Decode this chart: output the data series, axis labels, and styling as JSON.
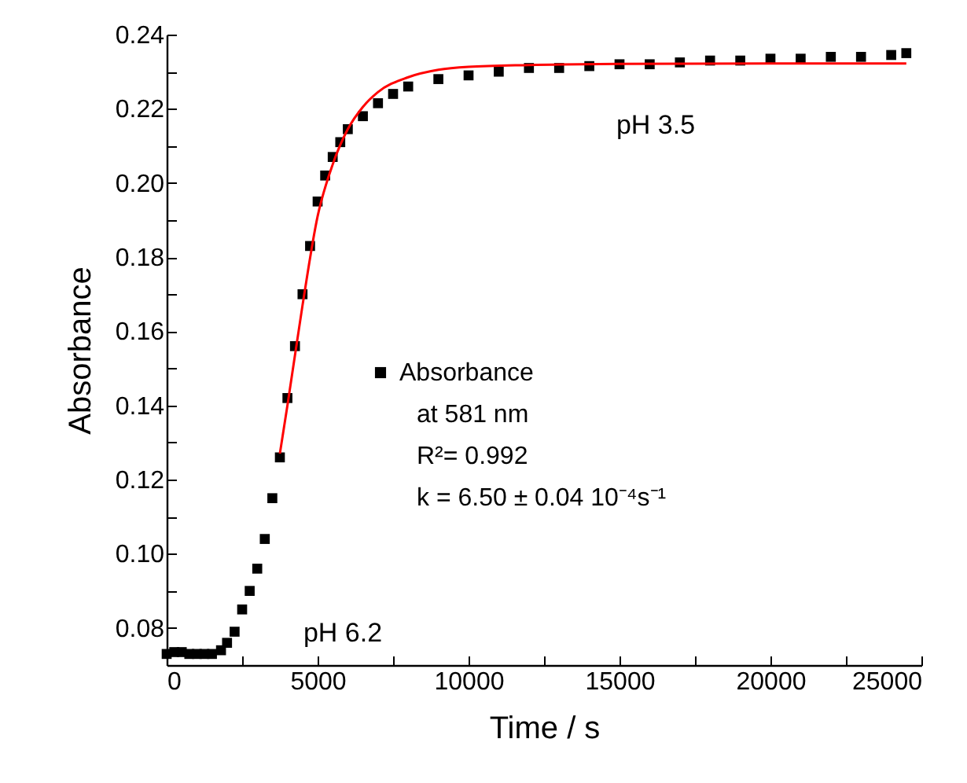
{
  "chart_data": {
    "type": "scatter",
    "xlabel": "Time / s",
    "ylabel": "Absorbance",
    "xlim": [
      0,
      25000
    ],
    "ylim": [
      0.07,
      0.24
    ],
    "xticks": [
      0,
      {
        "value": 2500,
        "label": null
      },
      5000,
      {
        "value": 7500,
        "label": null
      },
      10000,
      {
        "value": 12500,
        "label": null
      },
      15000,
      {
        "value": 17500,
        "label": null
      },
      20000,
      {
        "value": 22500,
        "label": null
      },
      25000
    ],
    "yticks": [
      {
        "value": 0.07,
        "label": null
      },
      "0.08",
      {
        "value": 0.09,
        "label": null
      },
      {
        "value": 0.1,
        "label": "0.10"
      },
      {
        "value": 0.11,
        "label": null
      },
      {
        "value": 0.12,
        "label": "0.12"
      },
      {
        "value": 0.13,
        "label": null
      },
      {
        "value": 0.14,
        "label": "0.14"
      },
      {
        "value": 0.15,
        "label": null
      },
      {
        "value": 0.16,
        "label": "0.16"
      },
      {
        "value": 0.17,
        "label": null
      },
      {
        "value": 0.18,
        "label": "0.18"
      },
      {
        "value": 0.19,
        "label": null
      },
      {
        "value": 0.2,
        "label": "0.20"
      },
      {
        "value": 0.21,
        "label": null
      },
      {
        "value": 0.22,
        "label": "0.22"
      },
      {
        "value": 0.23,
        "label": null
      },
      {
        "value": 0.24,
        "label": "0.24"
      }
    ],
    "legend": "center",
    "grid": false,
    "series": [
      {
        "name": "Absorbance",
        "type": "scatter",
        "marker": "square",
        "color": "#000000",
        "x": [
          0,
          250,
          500,
          750,
          1000,
          1250,
          1500,
          1800,
          2000,
          2250,
          2500,
          2750,
          3000,
          3250,
          3500,
          3750,
          4000,
          4250,
          4500,
          4750,
          5000,
          5250,
          5500,
          5750,
          6000,
          6500,
          7000,
          7500,
          8000,
          9000,
          10000,
          11000,
          12000,
          13000,
          14000,
          15000,
          16000,
          17000,
          18000,
          19000,
          20000,
          21000,
          22000,
          23000,
          24000,
          24500
        ],
        "values": [
          0.073,
          0.0735,
          0.0735,
          0.073,
          0.073,
          0.073,
          0.073,
          0.074,
          0.076,
          0.079,
          0.085,
          0.09,
          0.096,
          0.104,
          0.115,
          0.126,
          0.142,
          0.156,
          0.17,
          0.183,
          0.195,
          0.202,
          0.207,
          0.211,
          0.2145,
          0.218,
          0.2215,
          0.224,
          0.226,
          0.228,
          0.229,
          0.23,
          0.231,
          0.231,
          0.2315,
          0.232,
          0.232,
          0.2325,
          0.233,
          0.233,
          0.2335,
          0.2335,
          0.234,
          0.234,
          0.2345,
          0.235
        ]
      },
      {
        "type": "line",
        "marker": "none",
        "color": "#ff0000",
        "x": [
          3750,
          4000,
          4500,
          5000,
          5500,
          6000,
          6500,
          7000,
          8000,
          9000,
          10000,
          12000,
          15000,
          20000,
          24500
        ],
        "values": [
          0.127,
          0.14,
          0.167,
          0.191,
          0.205,
          0.2145,
          0.2205,
          0.2245,
          0.2285,
          0.2305,
          0.2313,
          0.2318,
          0.2321,
          0.2322,
          0.2322
        ]
      }
    ],
    "annotations": [
      "at 581 nm",
      "R²= 0.992",
      "k = 6.50 ± 0.04 10⁻⁴s⁻¹",
      "pH 6.2",
      "pH 3.5"
    ]
  }
}
